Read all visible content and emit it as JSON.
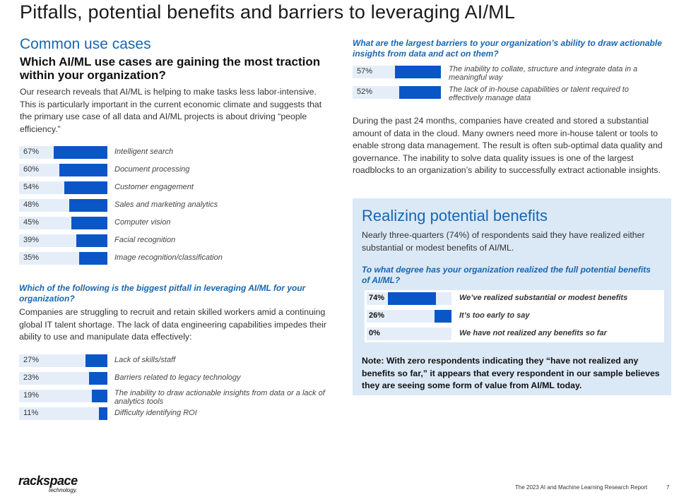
{
  "title": "Pitfalls, potential benefits and barriers to leveraging AI/ML",
  "use_cases": {
    "section_title": "Common use cases",
    "question": "Which AI/ML use cases are gaining the most traction within your organization?",
    "paragraph": "Our research reveals that AI/ML is helping to make tasks less labor-intensive. This is particularly important in the current economic climate and suggests that the primary use case of all data and AI/ML projects is about driving “people efficiency.”",
    "bars": [
      {
        "pct": "67%",
        "value": 67,
        "label": "Intelligent search"
      },
      {
        "pct": "60%",
        "value": 60,
        "label": "Document processing"
      },
      {
        "pct": "54%",
        "value": 54,
        "label": "Customer engagement"
      },
      {
        "pct": "48%",
        "value": 48,
        "label": "Sales and marketing analytics"
      },
      {
        "pct": "45%",
        "value": 45,
        "label": "Computer vision"
      },
      {
        "pct": "39%",
        "value": 39,
        "label": "Facial recognition"
      },
      {
        "pct": "35%",
        "value": 35,
        "label": "Image recognition/classification"
      }
    ]
  },
  "pitfall": {
    "question": "Which of the following is the biggest pitfall in leveraging AI/ML for your organization?",
    "paragraph": "Companies are struggling to recruit and retain skilled workers amid a continuing global IT talent shortage. The lack of data engineering capabilities impedes their ability to use and manipulate data effectively:",
    "bars": [
      {
        "pct": "27%",
        "value": 27,
        "label": "Lack of skills/staff"
      },
      {
        "pct": "23%",
        "value": 23,
        "label": "Barriers related to legacy technology"
      },
      {
        "pct": "19%",
        "value": 19,
        "label": "The inability to draw actionable insights from data or a lack of analytics tools"
      },
      {
        "pct": "11%",
        "value": 11,
        "label": "Difficulty identifying ROI"
      }
    ]
  },
  "barriers": {
    "question": "What are the largest barriers to your organization’s ability to draw actionable insights from data and act on them?",
    "bars": [
      {
        "pct": "57%",
        "value": 57,
        "label": "The inability to collate, structure and integrate data in a meaningful way"
      },
      {
        "pct": "52%",
        "value": 52,
        "label": "The lack of in-house capabilities or talent required to effectively manage data"
      }
    ],
    "paragraph": "During the past 24 months, companies have created and stored a substantial amount of data in the cloud. Many owners need more in-house talent or tools to enable strong data management. The result is often sub-optimal data quality and governance. The inability to solve data quality issues is one of the largest roadblocks to an organization’s ability to successfully extract actionable insights."
  },
  "benefits": {
    "title": "Realizing potential benefits",
    "paragraph": "Nearly three-quarters (74%) of respondents said they have realized either substantial or modest benefits of AI/ML.",
    "question": "To what degree has your organization realized the full potential benefits of AI/ML?",
    "bars": [
      {
        "pct": "74%",
        "value": 74,
        "label": "We’ve realized substantial or modest benefits"
      },
      {
        "pct": "26%",
        "value": 26,
        "label": "It’s too early to say"
      },
      {
        "pct": "0%",
        "value": 0,
        "label": "We have not realized any benefits so far"
      }
    ],
    "note": "Note: With zero respondents indicating they “have not realized any benefits so far,” it appears that every respondent in our sample believes they are seeing some form of value from AI/ML today."
  },
  "logo": {
    "main": "rackspace",
    "sub": "technology."
  },
  "footer": {
    "text": "The 2023 AI and Machine Learning Research Report",
    "page": "7"
  },
  "colors": {
    "accent": "#1766b3",
    "bar": "#0a56c7",
    "track": "#e5eef8",
    "panel": "#dbe8f6"
  }
}
